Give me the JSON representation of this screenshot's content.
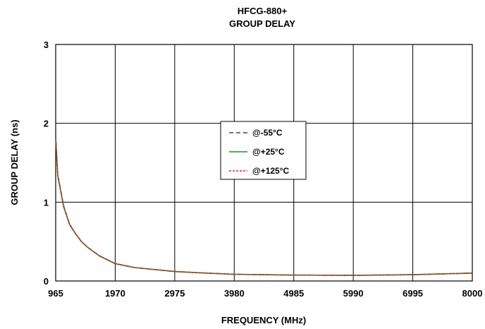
{
  "chart_data": {
    "type": "line",
    "title": "HFCG-880+",
    "subtitle": "GROUP DELAY",
    "xlabel": "FREQUENCY (MHz)",
    "ylabel": "GROUP DELAY (ns)",
    "xlim": [
      965,
      8000
    ],
    "ylim": [
      0,
      3
    ],
    "x_ticks": [
      "965",
      "1970",
      "2975",
      "3980",
      "4985",
      "5990",
      "6995",
      "8000"
    ],
    "y_ticks": [
      "0",
      "1",
      "2",
      "3"
    ],
    "grid": true,
    "legend_position": "center",
    "x": [
      965,
      1000,
      1100,
      1200,
      1300,
      1400,
      1500,
      1700,
      1970,
      2300,
      2975,
      3500,
      3980,
      4985,
      5990,
      6995,
      8000
    ],
    "series": [
      {
        "name": "@-55°C",
        "color": "#1f3fbf",
        "dash": "dashed",
        "values": [
          1.85,
          1.35,
          0.95,
          0.72,
          0.6,
          0.5,
          0.43,
          0.32,
          0.22,
          0.17,
          0.12,
          0.1,
          0.085,
          0.075,
          0.072,
          0.08,
          0.1
        ]
      },
      {
        "name": "@+25°C",
        "color": "#1f8f1f",
        "dash": "solid",
        "values": [
          1.82,
          1.34,
          0.94,
          0.72,
          0.6,
          0.5,
          0.43,
          0.32,
          0.22,
          0.17,
          0.12,
          0.1,
          0.085,
          0.075,
          0.072,
          0.08,
          0.1
        ]
      },
      {
        "name": "@+125°C",
        "color": "#e02020",
        "dash": "dotted",
        "values": [
          1.8,
          1.33,
          0.94,
          0.71,
          0.6,
          0.5,
          0.43,
          0.32,
          0.22,
          0.17,
          0.12,
          0.1,
          0.085,
          0.075,
          0.072,
          0.08,
          0.1
        ]
      }
    ]
  }
}
